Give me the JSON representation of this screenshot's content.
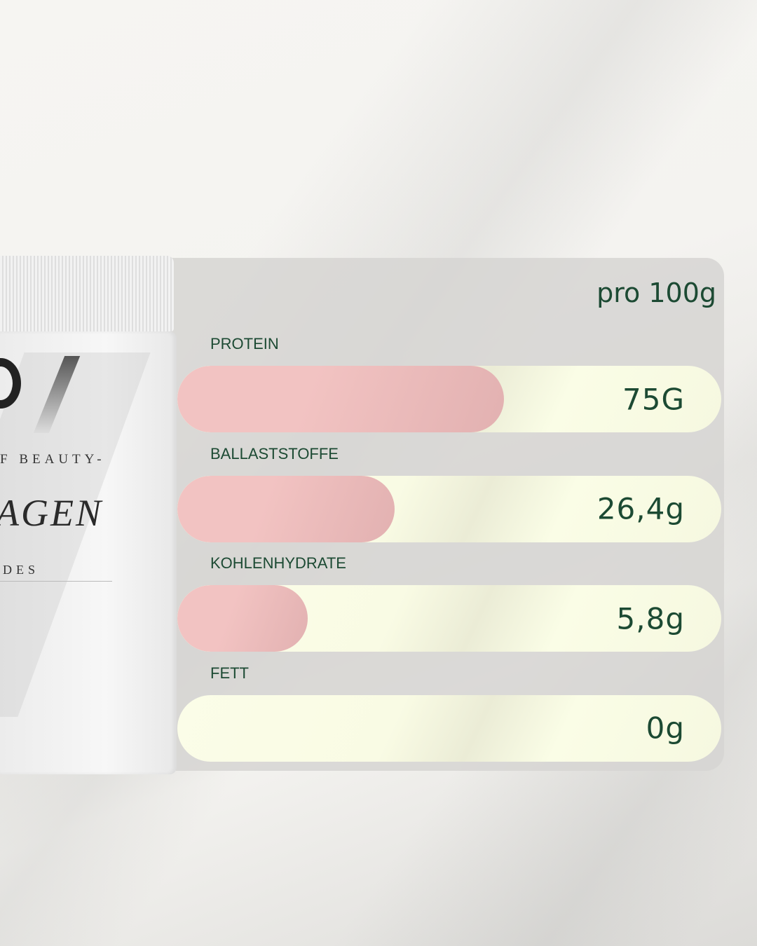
{
  "product": {
    "line1": "F BEAUTY-",
    "line2": "AGEN",
    "line3": "DES"
  },
  "chart_data": {
    "type": "bar",
    "title": "",
    "unit_label": "pro 100g",
    "categories": [
      "PROTEIN",
      "BALLASTSTOFFE",
      "KOHLENHYDRATE",
      "FETT"
    ],
    "value_labels": [
      "75G",
      "26,4g",
      "5,8g",
      "0g"
    ],
    "values": [
      75,
      26.4,
      5.8,
      0
    ],
    "fill_percent": [
      60,
      40,
      24,
      0
    ],
    "colors": {
      "fill": "#f2c3c2",
      "track": "#fbfde8",
      "text": "#1c4a33"
    }
  }
}
